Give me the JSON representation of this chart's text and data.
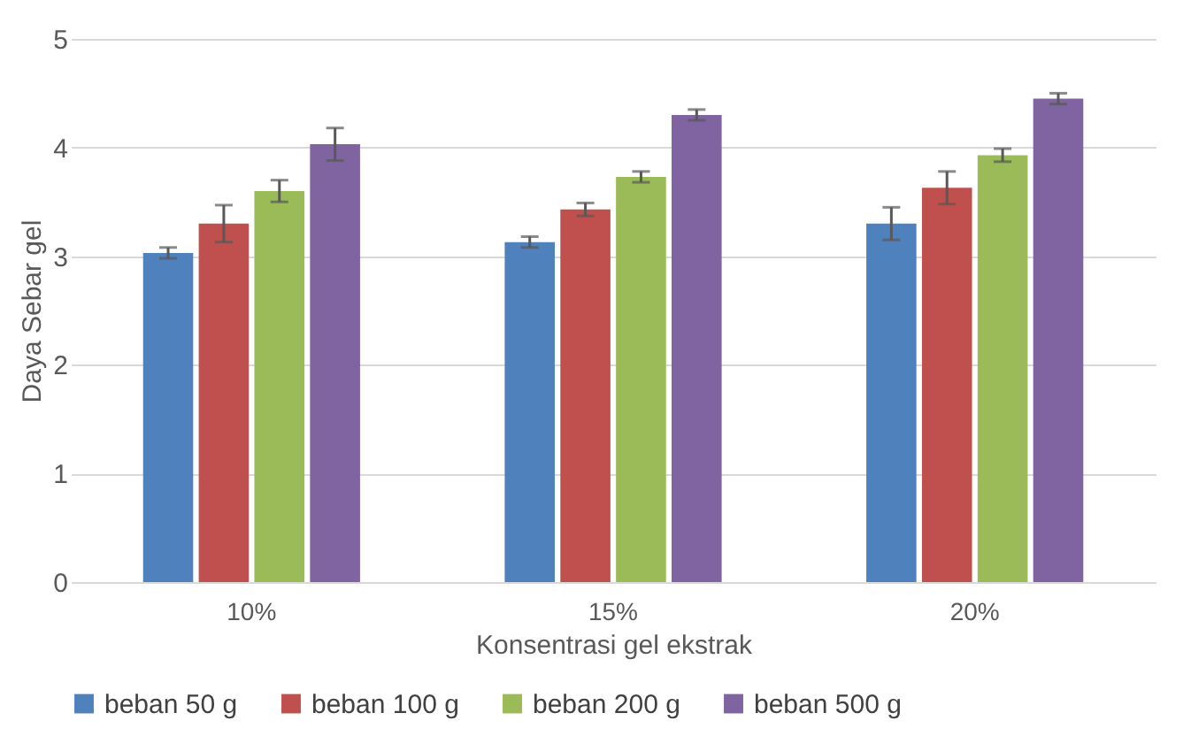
{
  "chart_data": {
    "type": "bar",
    "xlabel": "Konsentrasi gel ekstrak",
    "ylabel": "Daya Sebar gel",
    "categories": [
      "10%",
      "15%",
      "20%"
    ],
    "series": [
      {
        "name": "beban 50 g",
        "color": "#4f81bd",
        "values": [
          3.03,
          3.13,
          3.3
        ],
        "errors": [
          0.05,
          0.05,
          0.15
        ]
      },
      {
        "name": "beban 100 g",
        "color": "#c0504d",
        "values": [
          3.3,
          3.43,
          3.63
        ],
        "errors": [
          0.17,
          0.06,
          0.15
        ]
      },
      {
        "name": "beban 200 g",
        "color": "#9bbb59",
        "values": [
          3.6,
          3.73,
          3.93
        ],
        "errors": [
          0.1,
          0.05,
          0.06
        ]
      },
      {
        "name": "beban 500 g",
        "color": "#8064a2",
        "values": [
          4.03,
          4.3,
          4.45
        ],
        "errors": [
          0.15,
          0.05,
          0.05
        ]
      }
    ],
    "ylim": [
      0,
      5
    ],
    "yticks": [
      0,
      1,
      2,
      3,
      4,
      5
    ],
    "grid": "y",
    "legend": "bottom"
  }
}
